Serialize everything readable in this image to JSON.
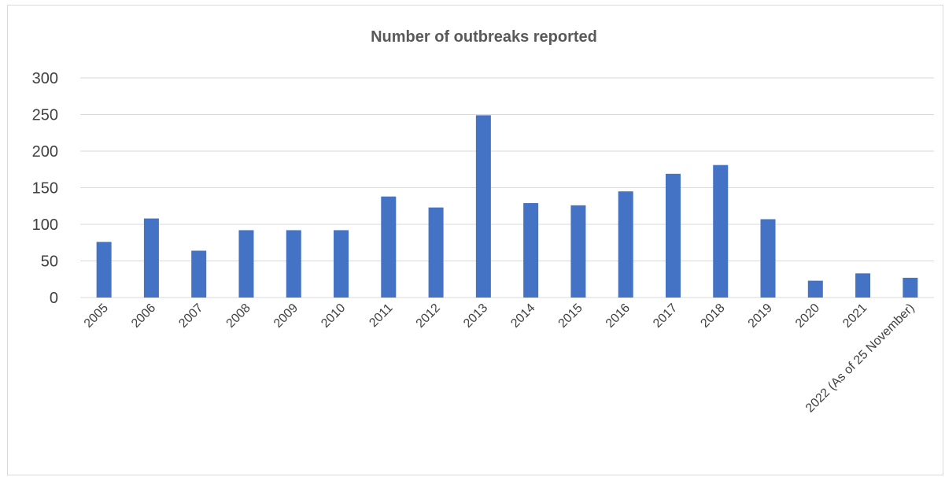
{
  "chart_data": {
    "type": "bar",
    "title": "Number of outbreaks reported",
    "xlabel": "",
    "ylabel": "",
    "categories": [
      "2005",
      "2006",
      "2007",
      "2008",
      "2009",
      "2010",
      "2011",
      "2012",
      "2013",
      "2014",
      "2015",
      "2016",
      "2017",
      "2018",
      "2019",
      "2020",
      "2021",
      "2022 (As of 25 November)"
    ],
    "values": [
      76,
      108,
      64,
      92,
      92,
      92,
      138,
      123,
      249,
      129,
      126,
      145,
      169,
      181,
      107,
      23,
      33,
      27
    ],
    "ylim": [
      0,
      300
    ],
    "yticks": [
      0,
      50,
      100,
      150,
      200,
      250,
      300
    ],
    "grid": true,
    "legend": "none",
    "bar_color": "#4472c4"
  }
}
